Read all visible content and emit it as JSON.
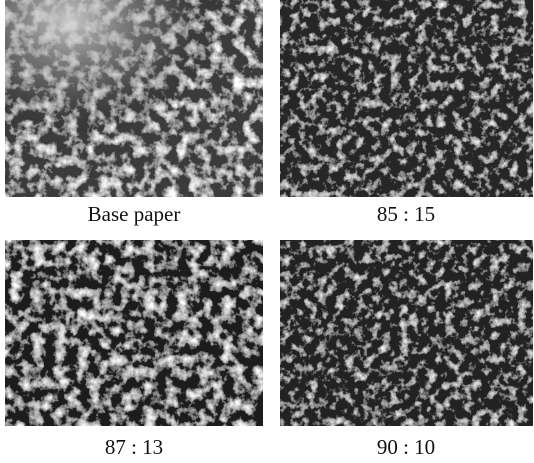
{
  "panels": [
    {
      "label": "Base paper"
    },
    {
      "label": "85 : 15"
    },
    {
      "label": "87 : 13"
    },
    {
      "label": "90 : 10"
    }
  ]
}
